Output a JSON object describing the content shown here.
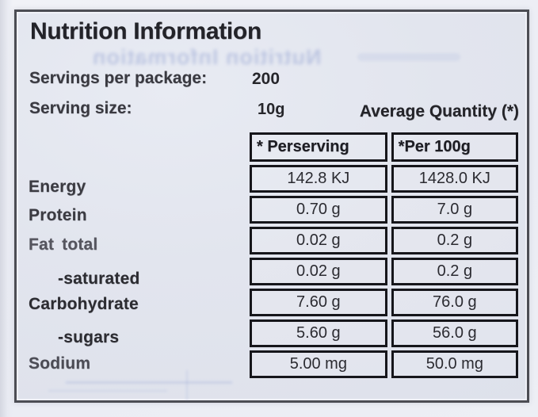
{
  "label": {
    "title": "Nutrition Information",
    "ghost_title": "Nutrition Information",
    "servings_per_package": {
      "label": "Servings per package:",
      "value": "200"
    },
    "serving_size": {
      "label": "Serving size:",
      "value": "10g"
    },
    "average_quantity_header": "Average Quantity (*)",
    "table": {
      "columns": [
        "* Perserving",
        "*Per 100g"
      ],
      "rows": [
        {
          "label": "Energy",
          "indent": false,
          "per_serving": "142.8 KJ",
          "per_100g": "1428.0 KJ"
        },
        {
          "label": "Protein",
          "indent": false,
          "per_serving": "0.70 g",
          "per_100g": "7.0 g"
        },
        {
          "label": "Fat total",
          "indent": false,
          "per_serving": "0.02 g",
          "per_100g": "0.2 g"
        },
        {
          "label": "-saturated",
          "indent": true,
          "per_serving": "0.02 g",
          "per_100g": "0.2 g"
        },
        {
          "label": "Carbohydrate",
          "indent": false,
          "per_serving": "7.60 g",
          "per_100g": "76.0 g"
        },
        {
          "label": "-sugars",
          "indent": true,
          "per_serving": "5.60 g",
          "per_100g": "56.0 g"
        },
        {
          "label": "Sodium",
          "indent": false,
          "per_serving": "5.00 mg",
          "per_100g": "50.0 mg"
        }
      ]
    }
  },
  "colors": {
    "label_background": "#e2e5ee",
    "table_border": "#16161b",
    "frame_border": "#4c4d54",
    "ink": "#2a2a2e",
    "ghost_blue": "#7d8fc9"
  }
}
